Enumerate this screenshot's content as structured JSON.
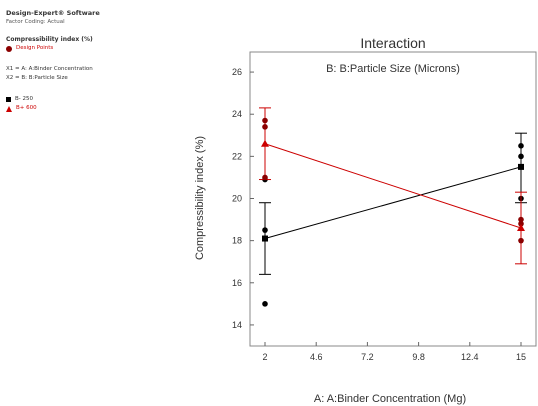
{
  "sidebar": {
    "software": "Design-Expert® Software",
    "factor_coding": "Factor Coding: Actual",
    "response": "Compressibility index (%)",
    "design_points": "Design Points",
    "x1": "X1 = A: A:Binder Concentration",
    "x2": "X2 = B: B:Particle Size",
    "b_low": "B- 250",
    "b_high": "B+ 600"
  },
  "colors": {
    "black_series": "#000000",
    "red_series": "#cc0000",
    "design_point": "#8b0000",
    "frame": "#888888"
  },
  "chart_data": {
    "type": "line",
    "title": "Interaction",
    "subtitle": "B: B:Particle Size (Microns)",
    "xlabel": "A: A:Binder Concentration (Mg)",
    "ylabel": "Compressibility index (%)",
    "xlim": [
      2,
      15
    ],
    "ylim": [
      13,
      27
    ],
    "x_ticks": [
      "2",
      "4.6",
      "7.2",
      "9.8",
      "12.4",
      "15"
    ],
    "y_ticks": [
      "14",
      "16",
      "18",
      "20",
      "22",
      "24",
      "26"
    ],
    "series": [
      {
        "name": "B- 250",
        "color": "#000000",
        "marker": "square",
        "points": [
          {
            "x": 2,
            "y": 18.1,
            "lo": 16.4,
            "hi": 19.8
          },
          {
            "x": 15,
            "y": 21.5,
            "lo": 19.8,
            "hi": 23.1
          }
        ],
        "design_points": [
          {
            "x": 2,
            "y": 15.0
          },
          {
            "x": 2,
            "y": 18.5
          },
          {
            "x": 2,
            "y": 20.9
          },
          {
            "x": 15,
            "y": 20.0
          },
          {
            "x": 15,
            "y": 22.0
          },
          {
            "x": 15,
            "y": 22.5
          }
        ]
      },
      {
        "name": "B+ 600",
        "color": "#cc0000",
        "marker": "triangle",
        "points": [
          {
            "x": 2,
            "y": 22.6,
            "lo": 20.9,
            "hi": 24.3
          },
          {
            "x": 15,
            "y": 18.6,
            "lo": 16.9,
            "hi": 20.3
          }
        ],
        "design_points": [
          {
            "x": 2,
            "y": 21.0
          },
          {
            "x": 2,
            "y": 23.4
          },
          {
            "x": 2,
            "y": 23.7
          },
          {
            "x": 15,
            "y": 18.0
          },
          {
            "x": 15,
            "y": 18.8
          },
          {
            "x": 15,
            "y": 19.0
          }
        ]
      }
    ]
  }
}
